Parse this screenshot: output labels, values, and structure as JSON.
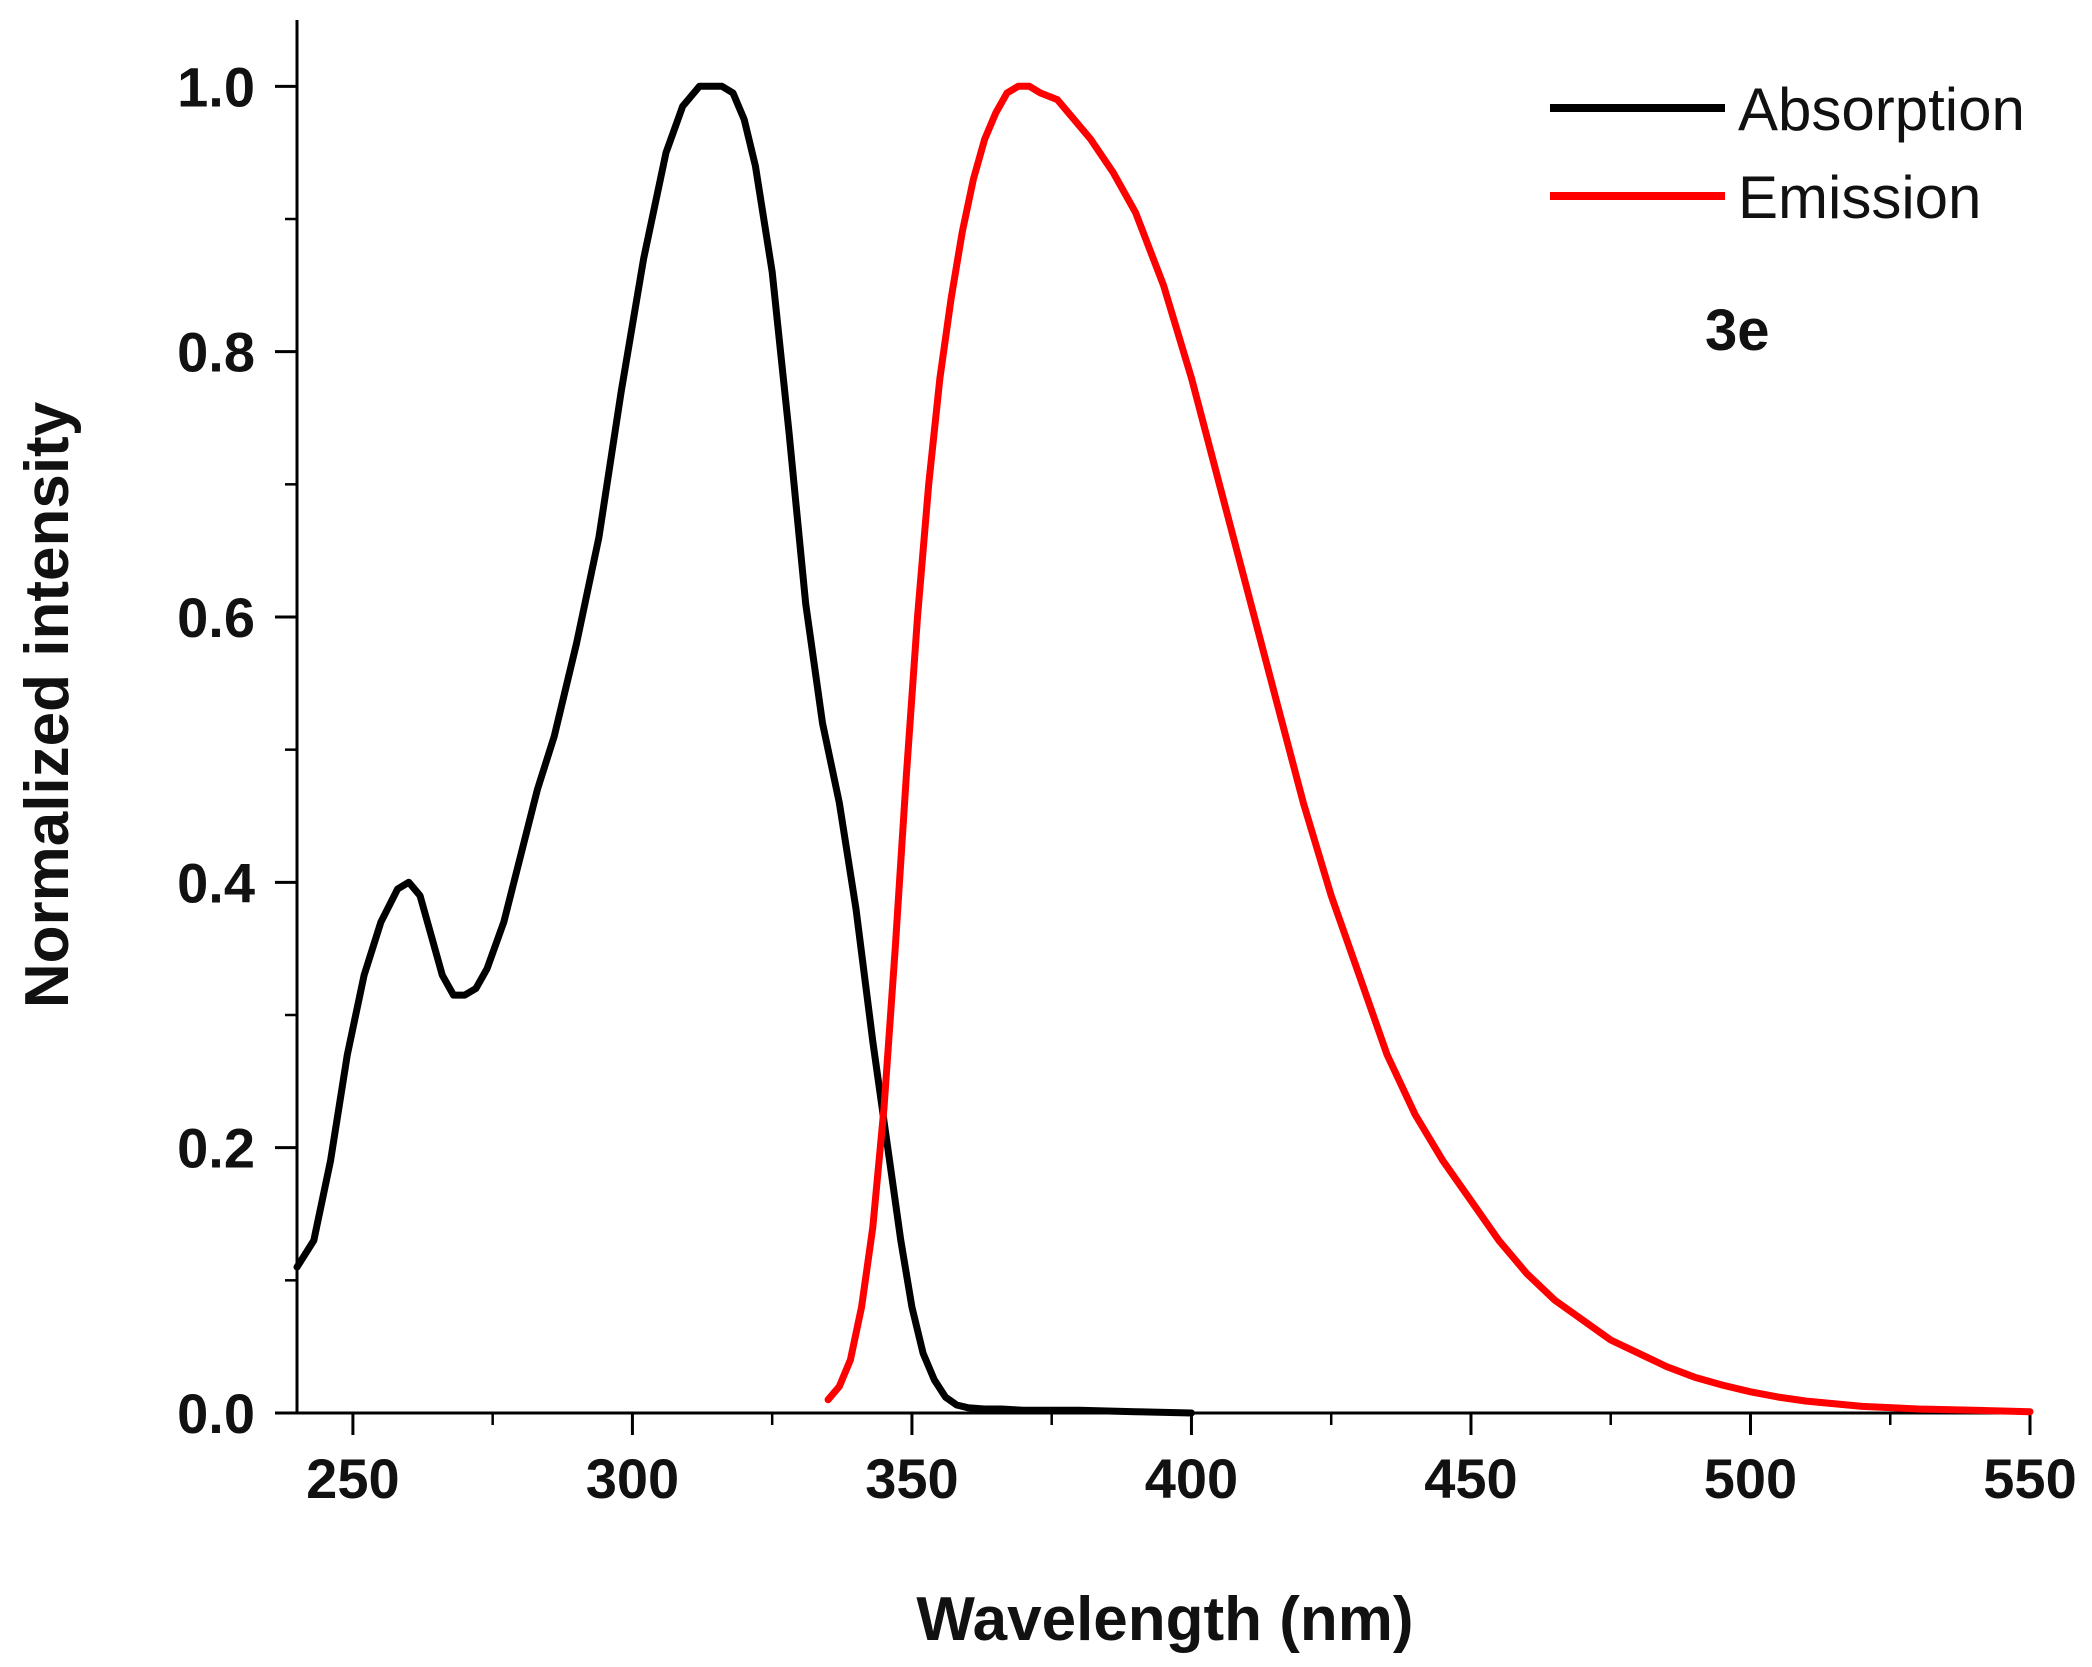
{
  "chart_data": {
    "type": "line",
    "title": "",
    "xlabel": "Wavelength (nm)",
    "ylabel": "Normalized intensity",
    "xlim": [
      240,
      550
    ],
    "ylim": [
      0,
      1.05
    ],
    "x_ticks": [
      250,
      300,
      350,
      400,
      450,
      500,
      550
    ],
    "x_tick_labels": [
      "250",
      "300",
      "350",
      "400",
      "450",
      "500",
      "550"
    ],
    "x_minor_step": 25,
    "y_ticks": [
      0,
      0.2,
      0.4,
      0.6,
      0.8,
      1.0
    ],
    "y_tick_labels": [
      "0.0",
      "0.2",
      "0.4",
      "0.6",
      "0.8",
      "1.0"
    ],
    "y_minor_step": 0.1,
    "grid": false,
    "legend_position": "top-right",
    "annotation": "3e",
    "series": [
      {
        "name": "Absorption",
        "color": "#000000",
        "x": [
          240,
          243,
          246,
          249,
          252,
          255,
          258,
          260,
          262,
          264,
          266,
          268,
          270,
          272,
          274,
          277,
          280,
          283,
          286,
          290,
          294,
          298,
          302,
          306,
          309,
          312,
          314,
          316,
          318,
          320,
          322,
          325,
          328,
          331,
          334,
          337,
          340,
          343,
          346,
          348,
          350,
          352,
          354,
          356,
          358,
          360,
          363,
          366,
          370,
          380,
          390,
          400
        ],
        "values": [
          0.11,
          0.13,
          0.19,
          0.27,
          0.33,
          0.37,
          0.395,
          0.4,
          0.39,
          0.36,
          0.33,
          0.315,
          0.315,
          0.32,
          0.335,
          0.37,
          0.42,
          0.47,
          0.51,
          0.58,
          0.66,
          0.77,
          0.87,
          0.95,
          0.985,
          1.0,
          1.0,
          1.0,
          0.995,
          0.975,
          0.94,
          0.86,
          0.74,
          0.61,
          0.52,
          0.46,
          0.38,
          0.28,
          0.19,
          0.13,
          0.08,
          0.045,
          0.025,
          0.012,
          0.006,
          0.004,
          0.003,
          0.003,
          0.002,
          0.002,
          0.001,
          0.0
        ]
      },
      {
        "name": "Emission",
        "color": "#ff0000",
        "x": [
          335,
          337,
          339,
          341,
          343,
          345,
          347,
          349,
          351,
          353,
          355,
          357,
          359,
          361,
          363,
          365,
          367,
          369,
          371,
          373,
          376,
          379,
          382,
          386,
          390,
          395,
          400,
          405,
          410,
          415,
          420,
          425,
          430,
          435,
          440,
          445,
          450,
          455,
          460,
          465,
          470,
          475,
          480,
          485,
          490,
          495,
          500,
          505,
          510,
          520,
          530,
          540,
          550
        ],
        "values": [
          0.01,
          0.02,
          0.04,
          0.08,
          0.14,
          0.23,
          0.35,
          0.48,
          0.6,
          0.7,
          0.78,
          0.84,
          0.89,
          0.93,
          0.96,
          0.98,
          0.995,
          1.0,
          1.0,
          0.995,
          0.99,
          0.975,
          0.96,
          0.935,
          0.905,
          0.85,
          0.78,
          0.7,
          0.62,
          0.54,
          0.46,
          0.39,
          0.33,
          0.27,
          0.225,
          0.19,
          0.16,
          0.13,
          0.105,
          0.085,
          0.07,
          0.055,
          0.045,
          0.035,
          0.027,
          0.021,
          0.016,
          0.012,
          0.009,
          0.005,
          0.003,
          0.002,
          0.001
        ]
      }
    ]
  }
}
